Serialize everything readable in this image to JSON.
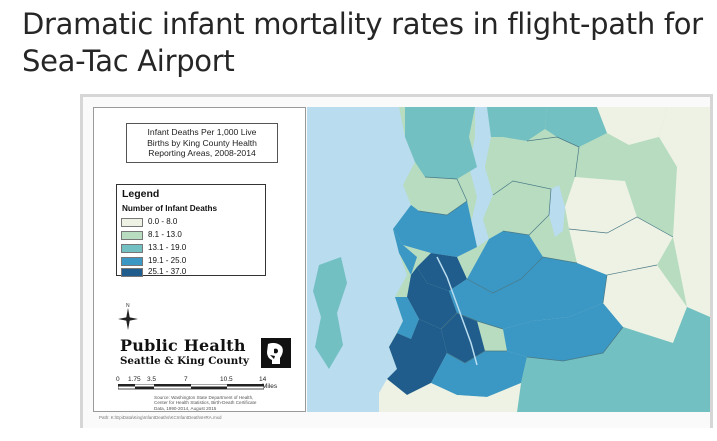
{
  "slide": {
    "title": "Dramatic infant mortality rates in flight-path for Sea-Tac Airport"
  },
  "map": {
    "title_lines": [
      "Infant Deaths Per 1,000 Live",
      "Births by King County Health",
      "Reporting Areas, 2008-2014"
    ],
    "legend": {
      "title": "Legend",
      "subtitle": "Number of Infant Deaths",
      "items": [
        {
          "label": "0.0 - 8.0",
          "color": "#eef2e4"
        },
        {
          "label": "8.1 - 13.0",
          "color": "#b7dcc0"
        },
        {
          "label": "13.1 - 19.0",
          "color": "#72c0c2"
        },
        {
          "label": "19.1 - 25.0",
          "color": "#3b97c4"
        },
        {
          "label": "25.1 - 37.0",
          "color": "#205d8c"
        }
      ]
    },
    "north_label": "N",
    "logo": {
      "line1": "Public Health",
      "line2": "Seattle & King County"
    },
    "scale": {
      "ticks": [
        "0",
        "1.75",
        "3.5",
        "7",
        "10.5",
        "14"
      ],
      "unit": "Miles"
    },
    "source_lines": [
      "Source: Washington State Department of Health,",
      "Center for Health Statistics, Birth-Death Certificate",
      "Data, 1990-2014, August 2015"
    ],
    "footer": "Path: K:\\EpiData\\King\\InfantDeaths\\KCInfantDeathsHRA.mxd",
    "colors": {
      "water": "#b9dcef",
      "class1": "#eef2e4",
      "class2": "#b7dcc0",
      "class3": "#72c0c2",
      "class4": "#3b97c4",
      "class5": "#205d8c"
    }
  }
}
